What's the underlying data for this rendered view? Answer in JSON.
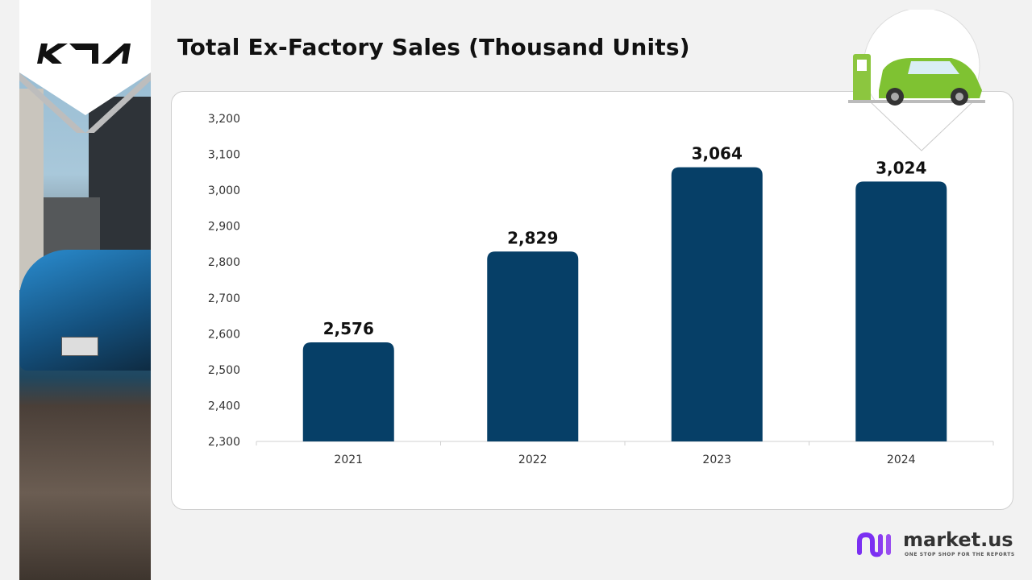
{
  "brand_logo": "KIA",
  "footer_logo": {
    "name": "market.us",
    "tagline": "ONE STOP SHOP FOR THE REPORTS"
  },
  "chart_data": {
    "type": "bar",
    "title": "Total Ex-Factory Sales (Thousand Units)",
    "categories": [
      "2021",
      "2022",
      "2023",
      "2024"
    ],
    "values": [
      2576,
      2829,
      3064,
      3024
    ],
    "data_labels": [
      "2,576",
      "2,829",
      "3,064",
      "3,024"
    ],
    "ylim": [
      2300,
      3200
    ],
    "yticks": [
      "2,300",
      "2,400",
      "2,500",
      "2,600",
      "2,700",
      "2,800",
      "2,900",
      "3,000",
      "3,100",
      "3,200"
    ],
    "grid": false,
    "legend": "none",
    "bar_color": "#063f67"
  }
}
